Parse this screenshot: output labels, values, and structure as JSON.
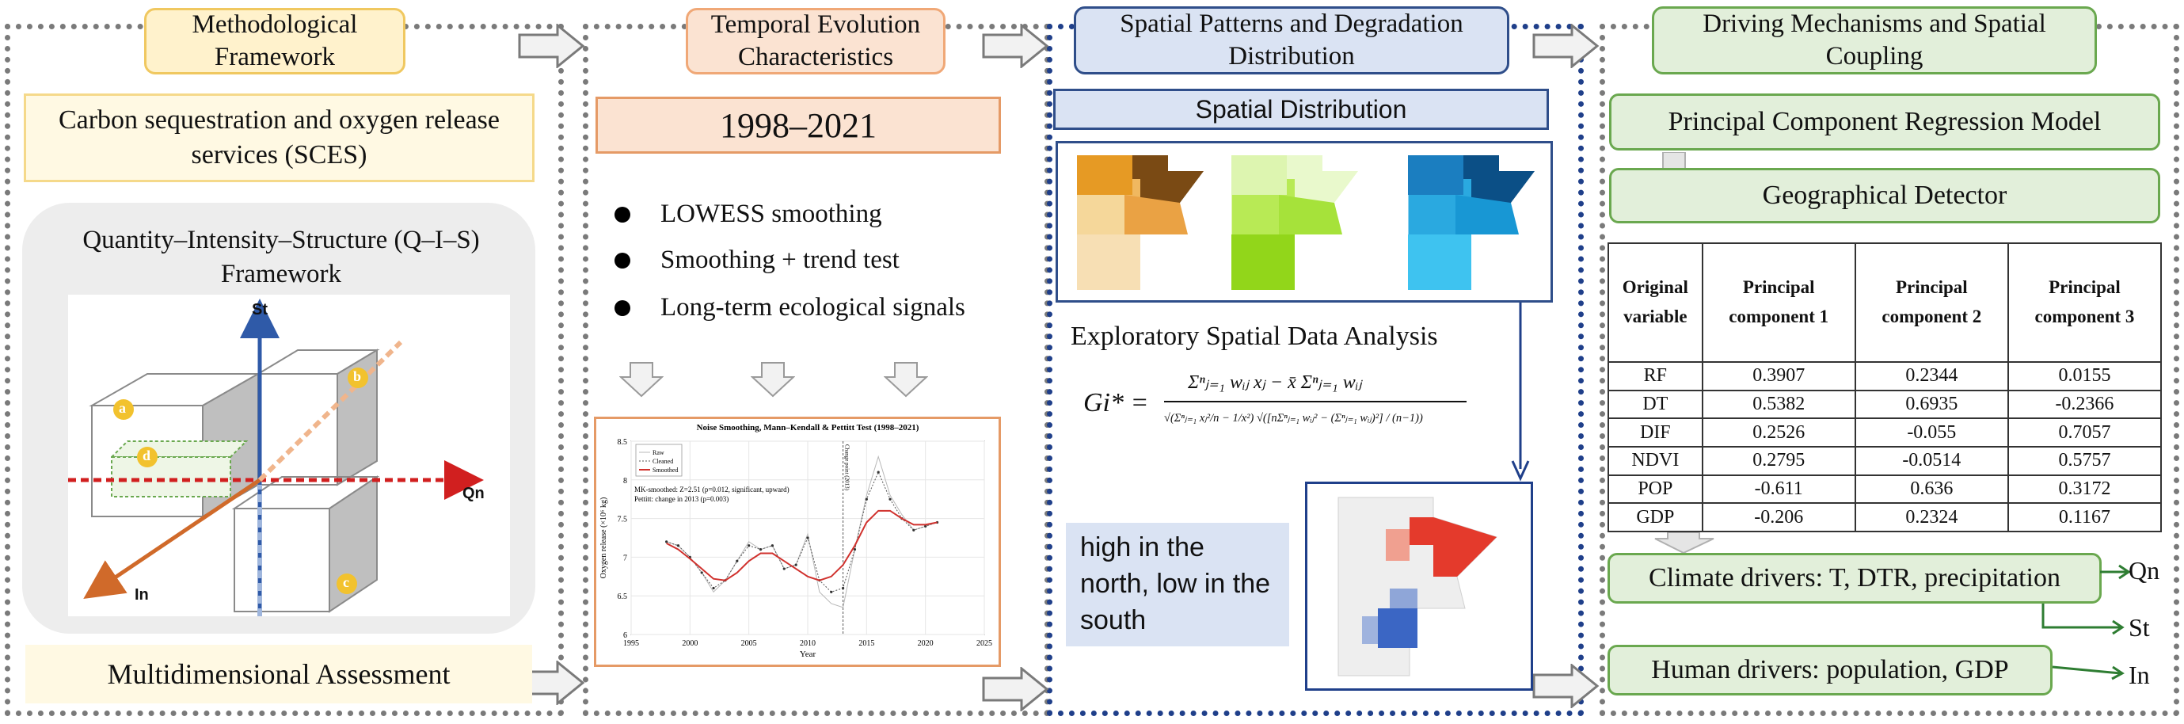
{
  "col1": {
    "title": "Methodological Framework",
    "sces": "Carbon sequestration and oxygen release services (SCES)",
    "qis": "Quantity–Intensity–Structure (Q–I–S) Framework",
    "axes": {
      "st": "St",
      "qn": "Qn",
      "in": "In"
    },
    "corners": {
      "a": "a",
      "b": "b",
      "c": "c",
      "d": "d"
    },
    "assessment": "Multidimensional Assessment"
  },
  "col2": {
    "title": "Temporal Evolution Characteristics",
    "period": "1998–2021",
    "bullets": [
      "LOWESS smoothing",
      "Smoothing + trend test",
      "Long-term ecological signals"
    ],
    "chart": {
      "title": "Noise Smoothing, Mann–Kendall & Pettitt Test (1998–2021)",
      "legend": [
        "Raw",
        "Cleaned",
        "Smoothed"
      ],
      "annot1": "MK-smoothed: Z=2.51 (p=0.012, significant, upward)",
      "annot2": "Pettitt: change in 2013 (p=0.003)",
      "changepoint_label": "Change point (2013)",
      "ylabel": "Oxygen release (×10⁶ kg)",
      "xlabel": "Year"
    }
  },
  "chart_data": {
    "type": "line",
    "title": "Noise Smoothing, Mann–Kendall & Pettitt Test (1998–2021)",
    "xlabel": "Year",
    "ylabel": "Oxygen release (×10⁶ kg)",
    "xlim": [
      1995,
      2025
    ],
    "ylim": [
      6,
      8.5
    ],
    "xticks": [
      1995,
      2000,
      2005,
      2010,
      2015,
      2020,
      2025
    ],
    "yticks": [
      6,
      6.5,
      7,
      7.5,
      8,
      8.5
    ],
    "x": [
      1998,
      1999,
      2000,
      2001,
      2002,
      2003,
      2004,
      2005,
      2006,
      2007,
      2008,
      2009,
      2010,
      2011,
      2012,
      2013,
      2014,
      2015,
      2016,
      2017,
      2018,
      2019,
      2020,
      2021
    ],
    "series": [
      {
        "name": "Raw",
        "values": [
          7.2,
          7.15,
          7.0,
          6.8,
          6.55,
          6.7,
          6.95,
          7.2,
          7.1,
          7.15,
          6.85,
          6.9,
          7.3,
          6.55,
          6.4,
          6.35,
          7.1,
          7.8,
          8.3,
          7.8,
          7.55,
          7.35,
          7.4,
          7.45
        ]
      },
      {
        "name": "Cleaned",
        "values": [
          7.2,
          7.15,
          7.0,
          6.8,
          6.6,
          6.7,
          6.95,
          7.15,
          7.1,
          7.15,
          6.85,
          6.9,
          7.25,
          6.7,
          6.55,
          6.6,
          7.1,
          7.75,
          8.1,
          7.75,
          7.5,
          7.35,
          7.4,
          7.45
        ]
      },
      {
        "name": "Smoothed",
        "values": [
          7.18,
          7.1,
          6.98,
          6.85,
          6.72,
          6.7,
          6.8,
          6.95,
          7.05,
          7.05,
          6.95,
          6.85,
          6.75,
          6.7,
          6.75,
          6.9,
          7.15,
          7.45,
          7.6,
          7.6,
          7.5,
          7.42,
          7.42,
          7.45
        ]
      }
    ],
    "changepoint": 2013,
    "grid": true,
    "legend_position": "top-left"
  },
  "col3": {
    "title": "Spatial Patterns and Degradation Distribution",
    "spatial": "Spatial Distribution",
    "esda": "Exploratory Spatial Data Analysis",
    "formula_lhs": "Gi* =",
    "formula_num": "Σⁿⱼ₌₁ wᵢⱼ xⱼ − x̄ Σⁿⱼ₌₁ wᵢⱼ",
    "formula_den": "√(Σⁿⱼ₌₁ xⱼ²/n − 1/x²) √([nΣⁿⱼ₌₁ wᵢⱼ² − (Σⁿⱼ₌₁ wᵢⱼ)²] / (n−1))",
    "note": "high in the north, low in the south"
  },
  "col4": {
    "title": "Driving Mechanisms and Spatial Coupling",
    "pcr": "Principal Component Regression Model",
    "geo": "Geographical Detector",
    "table": {
      "headers": [
        "Original variable",
        "Principal component 1",
        "Principal component 2",
        "Principal component 3"
      ],
      "rows": [
        [
          "RF",
          "0.3907",
          "0.2344",
          "0.0155"
        ],
        [
          "DT",
          "0.5382",
          "0.6935",
          "-0.2366"
        ],
        [
          "DIF",
          "0.2526",
          "-0.055",
          "0.7057"
        ],
        [
          "NDVI",
          "0.2795",
          "-0.0514",
          "0.5757"
        ],
        [
          "POP",
          "-0.611",
          "0.636",
          "0.3172"
        ],
        [
          "GDP",
          "-0.206",
          "0.2324",
          "0.1167"
        ]
      ]
    },
    "climate": "Climate drivers: T, DTR, precipitation",
    "human": "Human drivers: population, GDP",
    "out_qn": "Qn",
    "out_st": "St",
    "out_in": "In"
  },
  "colors": {
    "yellow": "#fff2cc",
    "orange": "#fbe3d2",
    "blue": "#dae3f3",
    "green": "#e2efda",
    "gray_panel": "#ededed"
  }
}
